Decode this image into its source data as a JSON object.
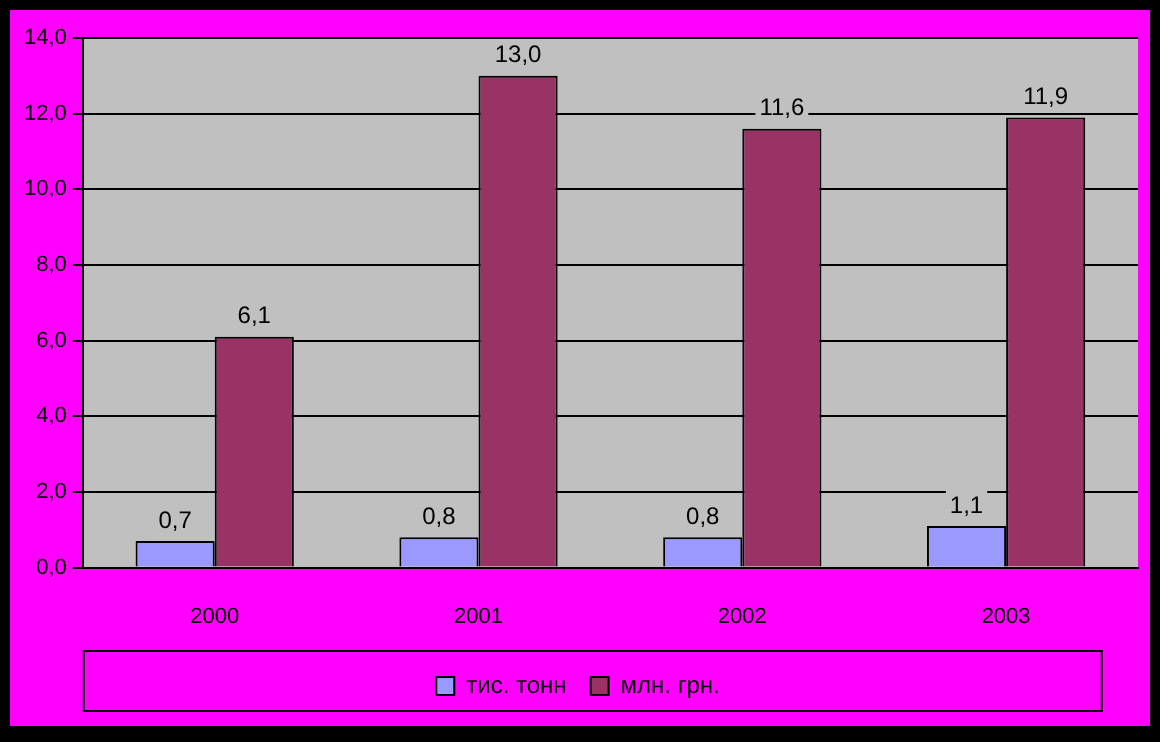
{
  "chart_data": {
    "type": "bar",
    "categories": [
      "2000",
      "2001",
      "2002",
      "2003"
    ],
    "series": [
      {
        "name": "тис. тонн",
        "color": "#9999ff",
        "values": [
          0.7,
          0.8,
          0.8,
          1.1
        ],
        "value_labels": [
          "0,7",
          "0,8",
          "0,8",
          "1,1"
        ]
      },
      {
        "name": "млн. грн.",
        "color": "#993366",
        "values": [
          6.1,
          13.0,
          11.6,
          11.9
        ],
        "value_labels": [
          "6,1",
          "13,0",
          "11,6",
          "11,9"
        ]
      }
    ],
    "ylim": [
      0,
      14
    ],
    "yticks": [
      {
        "value": 0,
        "label": "0,0"
      },
      {
        "value": 2,
        "label": "2,0"
      },
      {
        "value": 4,
        "label": "4,0"
      },
      {
        "value": 6,
        "label": "6,0"
      },
      {
        "value": 8,
        "label": "8,0"
      },
      {
        "value": 10,
        "label": "10,0"
      },
      {
        "value": 12,
        "label": "12,0"
      },
      {
        "value": 14,
        "label": "14,0"
      }
    ],
    "grid": "y",
    "legend": "bottom"
  }
}
